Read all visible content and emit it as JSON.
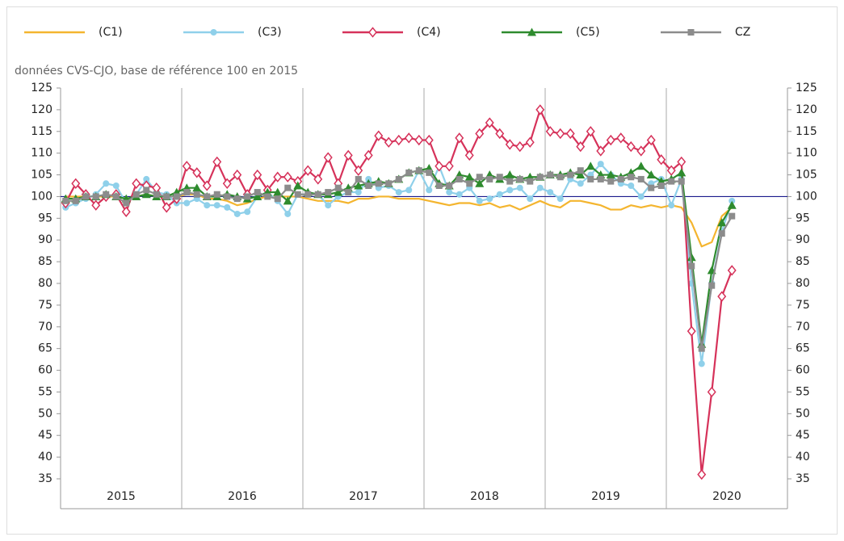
{
  "chart_data": {
    "type": "line",
    "subtitle": "données CVS-CJO, base de référence 100 en 2015",
    "categories": [
      "2015",
      null,
      null,
      null,
      null,
      null,
      null,
      null,
      null,
      null,
      null,
      null,
      "2016",
      null,
      null,
      null,
      null,
      null,
      null,
      null,
      null,
      null,
      null,
      null,
      "2017",
      null,
      null,
      null,
      null,
      null,
      null,
      null,
      null,
      null,
      null,
      null,
      "2018",
      null,
      null,
      null,
      null,
      null,
      null,
      null,
      null,
      null,
      null,
      null,
      "2019",
      null,
      null,
      null,
      null,
      null,
      null,
      null,
      null,
      null,
      null,
      null,
      "2020",
      null,
      null,
      null,
      null,
      null,
      null,
      null,
      null,
      null,
      null,
      null
    ],
    "series": [
      {
        "name": "(C1)",
        "color": "#f4b52f",
        "values": [
          100,
          100,
          100,
          100,
          100,
          100,
          99.5,
          100,
          100.5,
          100,
          100,
          100,
          100.5,
          100.5,
          99.5,
          99.5,
          99,
          98,
          98.5,
          99.5,
          100,
          100,
          100,
          100,
          99.5,
          99,
          99,
          99,
          98.5,
          99.5,
          99.5,
          100,
          100,
          99.5,
          99.5,
          99.5,
          99,
          98.5,
          98,
          98.5,
          98.5,
          98,
          98.5,
          97.5,
          98,
          97,
          98,
          99,
          98,
          97.5,
          99,
          99,
          98.5,
          98,
          97,
          97,
          98,
          97.5,
          98,
          97.5,
          98,
          97.5,
          94,
          88.5,
          89.5,
          95.5,
          97.5,
          null,
          null,
          null,
          null,
          null
        ]
      },
      {
        "name": "(C3)",
        "color": "#8fd0ea",
        "marker": "circle",
        "values": [
          97.5,
          98.5,
          99.5,
          100.5,
          103,
          102.5,
          98.5,
          100.5,
          104,
          101,
          100.5,
          98.5,
          98.5,
          99.5,
          98,
          98,
          97.5,
          96,
          96.5,
          100,
          101,
          99,
          96,
          100.5,
          100.5,
          100.5,
          98,
          100,
          101,
          101,
          104,
          102,
          102.5,
          101,
          101.5,
          106,
          101.5,
          107,
          101,
          100.5,
          102,
          99,
          99.5,
          100.5,
          101.5,
          102,
          99.5,
          102,
          101,
          99.5,
          104,
          103,
          105,
          107.5,
          105,
          103,
          102.5,
          100,
          103,
          104,
          98,
          104,
          80,
          61.5,
          80,
          92,
          99,
          null,
          null,
          null,
          null,
          null
        ]
      },
      {
        "name": "(C4)",
        "color": "#d6325a",
        "marker": "diamond",
        "values": [
          98.5,
          103,
          100.5,
          98,
          100,
          100.5,
          96.5,
          103,
          102.5,
          102,
          97.5,
          99.5,
          107,
          105.5,
          102.5,
          108,
          103,
          105,
          100.5,
          105,
          101.5,
          104.5,
          104.5,
          103.5,
          106,
          104,
          109,
          103,
          109.5,
          106,
          109.5,
          114,
          112.5,
          113,
          113.5,
          113,
          113,
          107,
          107,
          113.5,
          109.5,
          114.5,
          117,
          114.5,
          112,
          111.5,
          112.5,
          120,
          115,
          114.5,
          114.5,
          111.5,
          115,
          110.5,
          113,
          113.5,
          111.5,
          110.5,
          113,
          108.5,
          106,
          108,
          69,
          36,
          55,
          77,
          83,
          null,
          null,
          null,
          null,
          null
        ]
      },
      {
        "name": "(C5)",
        "color": "#2e8b2e",
        "marker": "triangle",
        "values": [
          99.5,
          99.5,
          100,
          100,
          100.5,
          100,
          99.5,
          100,
          100.5,
          100,
          100,
          101,
          102,
          102,
          100,
          100,
          100.5,
          100,
          99.5,
          100,
          101,
          101,
          99,
          102.5,
          101,
          100.5,
          100.5,
          101,
          102,
          102.5,
          103,
          103.5,
          103,
          104,
          105.5,
          106,
          106.5,
          103,
          102.5,
          105,
          104.5,
          103,
          105,
          104,
          105,
          104,
          104.5,
          104.5,
          105,
          105,
          105.5,
          105,
          107,
          105,
          105,
          104.5,
          105.5,
          107,
          105,
          103.5,
          104,
          105.5,
          86,
          66,
          83,
          94,
          98,
          null,
          null,
          null,
          null,
          null
        ]
      },
      {
        "name": "CZ",
        "color": "#8c8c8c",
        "marker": "square",
        "values": [
          99,
          99,
          100,
          100,
          100.5,
          100,
          98.5,
          100.5,
          101.5,
          100.5,
          100,
          100,
          101,
          100.5,
          100,
          100.5,
          100,
          99.5,
          100,
          101,
          100,
          99.5,
          102,
          100.5,
          100.5,
          100.5,
          101,
          102,
          101,
          104,
          102.5,
          103,
          103,
          104,
          105.5,
          106,
          105.5,
          102.5,
          102.5,
          104,
          103,
          104.5,
          104,
          104.5,
          103.5,
          104,
          103.5,
          104.5,
          105,
          104.5,
          105,
          106,
          104,
          104,
          103.5,
          104,
          104.5,
          104,
          102,
          102.5,
          103.5,
          103.5,
          84,
          65,
          79.5,
          91.5,
          95.5,
          null,
          null,
          null,
          null,
          null
        ]
      }
    ],
    "reference_line": {
      "value": 100,
      "color": "#1a1a8c"
    },
    "ylim": [
      35,
      125
    ],
    "yticks": [
      35,
      40,
      45,
      50,
      55,
      60,
      65,
      70,
      75,
      80,
      85,
      90,
      95,
      100,
      105,
      110,
      115,
      120,
      125
    ],
    "right_axis_labels": true,
    "legend": "top"
  }
}
